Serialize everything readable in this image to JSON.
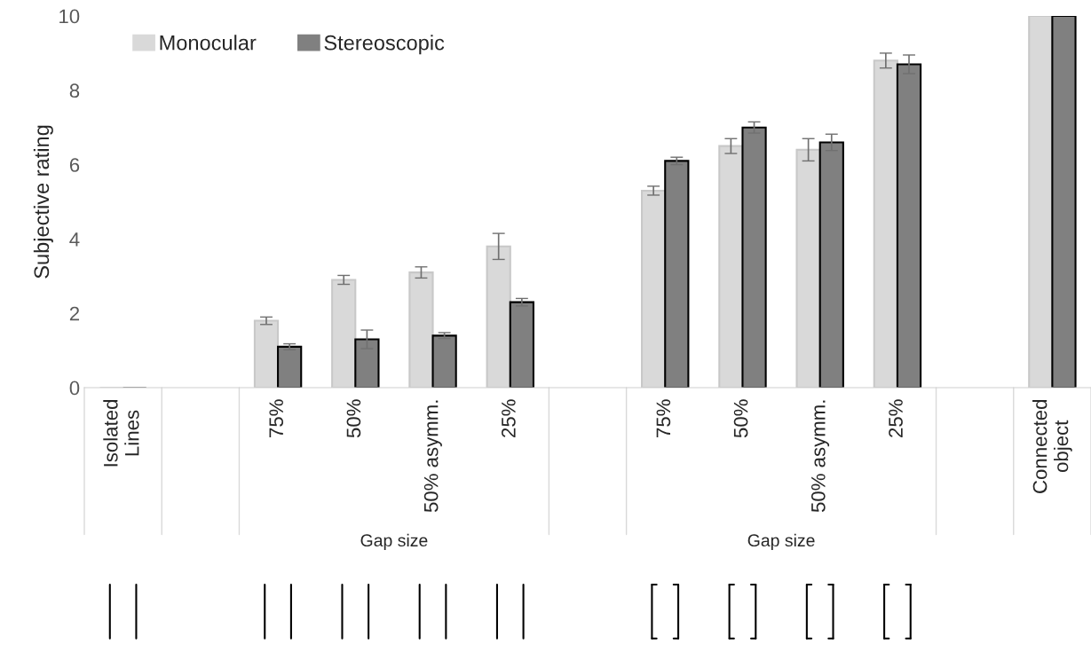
{
  "chart_data": {
    "type": "bar",
    "ylabel": "Subjective rating",
    "categories": [
      "Isolated\nLines",
      null,
      "75%",
      "50%",
      "50% asymm.",
      "25%",
      null,
      "75%",
      "50%",
      "50% asymm.",
      "25%",
      null,
      "Connected\nobject"
    ],
    "series": [
      {
        "name": "Monocular",
        "color": "#d9d9d9",
        "values": [
          0,
          null,
          1.8,
          2.9,
          3.1,
          3.8,
          null,
          5.3,
          6.5,
          6.4,
          8.8,
          null,
          10
        ],
        "errors": [
          null,
          null,
          0.1,
          0.12,
          0.15,
          0.35,
          null,
          0.12,
          0.2,
          0.3,
          0.2,
          null,
          null
        ]
      },
      {
        "name": "Stereoscopic",
        "color": "#808080",
        "values": [
          0,
          null,
          1.1,
          1.3,
          1.4,
          2.3,
          null,
          6.1,
          7.0,
          6.6,
          8.7,
          null,
          10
        ],
        "errors": [
          null,
          null,
          0.08,
          0.25,
          0.08,
          0.1,
          null,
          0.1,
          0.15,
          0.22,
          0.25,
          null,
          null
        ]
      }
    ],
    "ylim": [
      0,
      10
    ],
    "yticks": [
      0,
      2,
      4,
      6,
      8,
      10
    ],
    "grid": false,
    "legend": "top left",
    "annotations": [
      "Gap size",
      "Gap size"
    ]
  }
}
